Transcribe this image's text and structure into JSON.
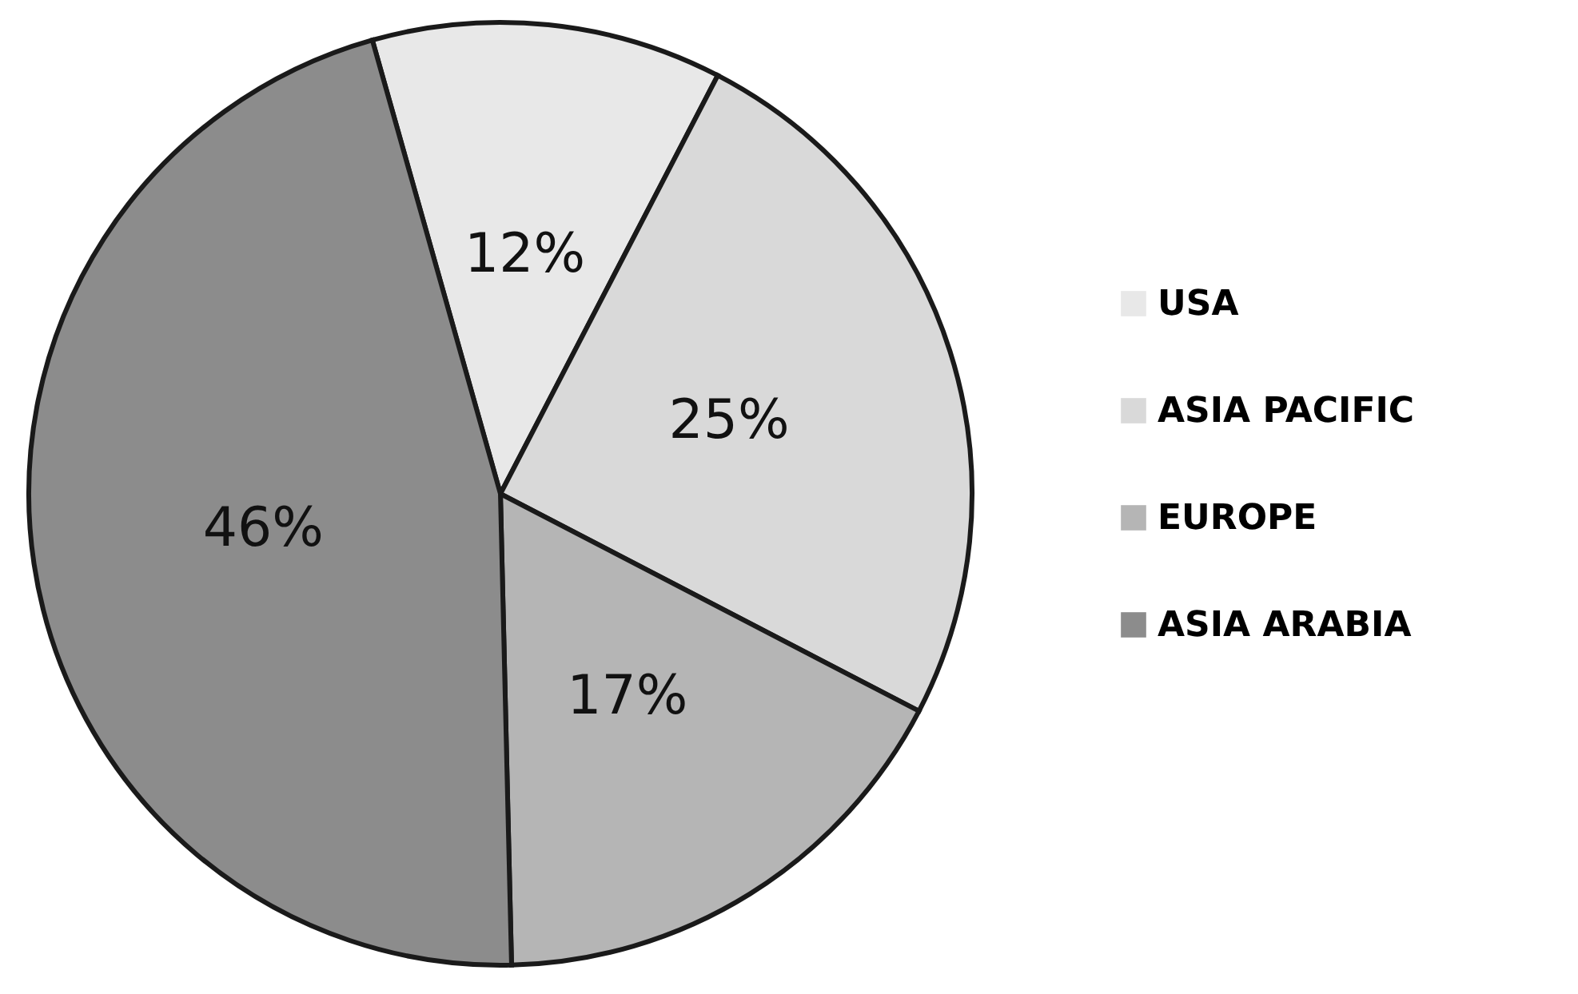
{
  "chart_data": {
    "type": "pie",
    "categories": [
      "USA",
      "ASIA PACIFIC",
      "EUROPE",
      "ASIA ARABIA"
    ],
    "values": [
      12,
      25,
      17,
      46
    ],
    "colors": [
      "#e8e8e8",
      "#d9d9d9",
      "#b5b5b5",
      "#8c8c8c"
    ],
    "value_labels": [
      "12%",
      "25%",
      "17%",
      "46%"
    ],
    "legend": "right"
  }
}
